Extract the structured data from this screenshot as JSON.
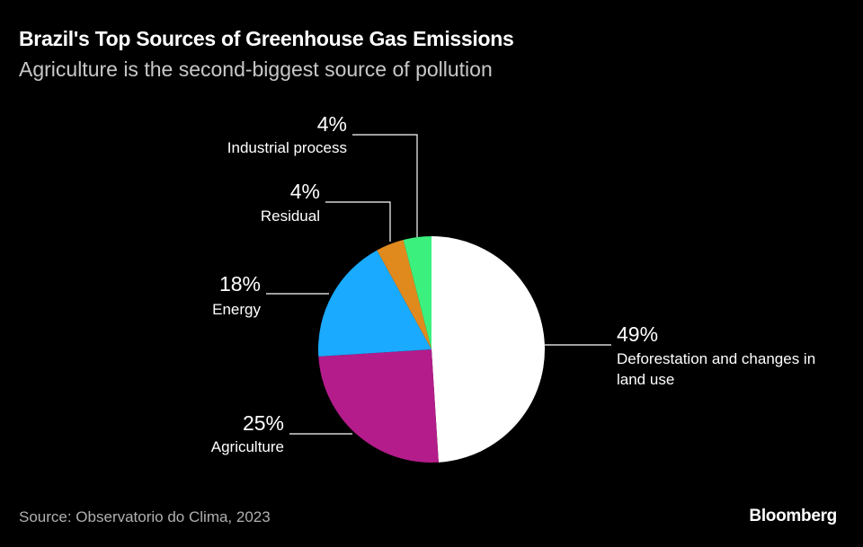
{
  "header": {
    "title": "Brazil's Top Sources of Greenhouse Gas Emissions",
    "subtitle": "Agriculture is the second-biggest source of pollution"
  },
  "footer": {
    "source": "Source: Observatorio do Clima, 2023",
    "brand": "Bloomberg"
  },
  "chart_data": {
    "type": "pie",
    "title": "Brazil's Top Sources of Greenhouse Gas Emissions",
    "subtitle": "Agriculture is the second-biggest source of pollution",
    "slices": [
      {
        "key": "deforestation",
        "label_lines": [
          "Deforestation and changes in",
          "land use"
        ],
        "value": 49,
        "value_label": "49%",
        "color": "#ffffff"
      },
      {
        "key": "agriculture",
        "label_lines": [
          "Agriculture"
        ],
        "value": 25,
        "value_label": "25%",
        "color": "#b31c8a"
      },
      {
        "key": "energy",
        "label_lines": [
          "Energy"
        ],
        "value": 18,
        "value_label": "18%",
        "color": "#1aaaff"
      },
      {
        "key": "residual",
        "label_lines": [
          "Residual"
        ],
        "value": 4,
        "value_label": "4%",
        "color": "#e08a1e"
      },
      {
        "key": "industrial",
        "label_lines": [
          "Industrial process"
        ],
        "value": 4,
        "value_label": "4%",
        "color": "#3cf07e"
      }
    ],
    "start": "12 o'clock",
    "direction": "clockwise"
  }
}
